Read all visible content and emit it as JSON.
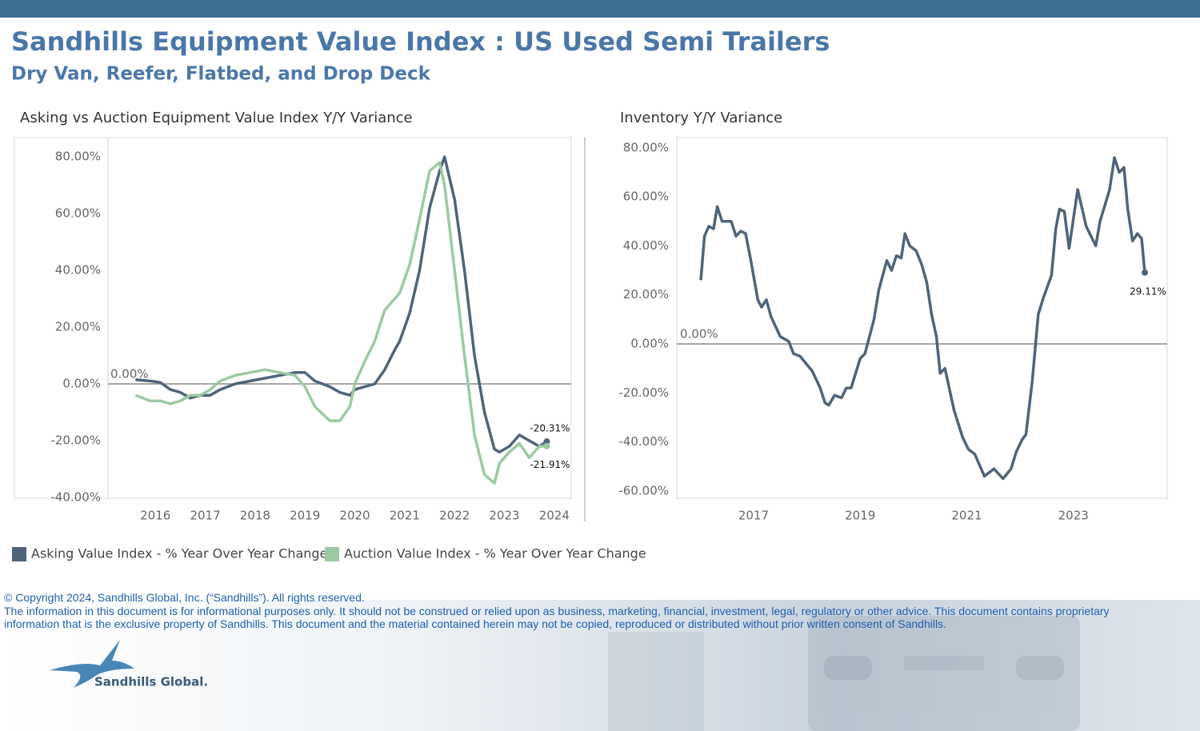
{
  "header": {
    "title": "Sandhills Equipment Value Index : US Used Semi Trailers",
    "subtitle": "Dry Van, Reefer, Flatbed, and Drop Deck"
  },
  "chart_data": [
    {
      "type": "line",
      "title": "Asking vs Auction Equipment Value Index Y/Y Variance",
      "x": [
        2015.6,
        2015.9,
        2016.1,
        2016.3,
        2016.5,
        2016.7,
        2016.9,
        2017.1,
        2017.3,
        2017.6,
        2017.9,
        2018.2,
        2018.5,
        2018.8,
        2019.0,
        2019.2,
        2019.5,
        2019.7,
        2019.9,
        2020.0,
        2020.2,
        2020.4,
        2020.6,
        2020.8,
        2020.9,
        2021.1,
        2021.3,
        2021.5,
        2021.7,
        2021.8,
        2022.0,
        2022.2,
        2022.4,
        2022.6,
        2022.8,
        2022.9,
        2023.1,
        2023.3,
        2023.5,
        2023.7,
        2023.85
      ],
      "series": [
        {
          "name": "Asking Value Index - % Year Over Year Change",
          "color": "#4f6479",
          "values": [
            1.5,
            1,
            0.5,
            -2,
            -3,
            -5,
            -4,
            -4,
            -2,
            0,
            1,
            2,
            3,
            4,
            4,
            1,
            -1,
            -3,
            -4,
            -2,
            -1,
            0,
            5,
            12,
            15,
            25,
            40,
            62,
            75,
            80,
            65,
            40,
            10,
            -10,
            -23,
            -24,
            -22,
            -18,
            -20,
            -22,
            -20.31
          ],
          "value_labels": [
            null,
            null,
            null,
            null,
            null,
            null,
            null,
            null,
            null,
            null,
            null,
            null,
            null,
            null,
            null,
            null,
            null,
            null,
            null,
            null,
            null,
            null,
            null,
            null,
            null,
            null,
            null,
            null,
            null,
            null,
            null,
            null,
            null,
            null,
            null,
            null,
            null,
            null,
            null,
            null,
            "-20.31%"
          ]
        },
        {
          "name": "Auction Value Index - % Year Over Year Change",
          "color": "#9cc9a3",
          "values": [
            -4,
            -6,
            -6,
            -7,
            -6,
            -4,
            -4,
            -2,
            1,
            3,
            4,
            5,
            4,
            3,
            -1,
            -8,
            -13,
            -13,
            -8,
            0,
            8,
            15,
            26,
            30,
            32,
            42,
            58,
            75,
            78,
            70,
            40,
            10,
            -18,
            -32,
            -35,
            -28,
            -24,
            -21,
            -26,
            -22,
            -21.91
          ],
          "value_labels": [
            null,
            null,
            null,
            null,
            null,
            null,
            null,
            null,
            null,
            null,
            null,
            null,
            null,
            null,
            null,
            null,
            null,
            null,
            null,
            null,
            null,
            null,
            null,
            null,
            null,
            null,
            null,
            null,
            null,
            null,
            null,
            null,
            null,
            null,
            null,
            null,
            null,
            null,
            null,
            null,
            "-21.91%"
          ]
        }
      ],
      "reference_line": {
        "value": 0,
        "label": "0.00%"
      },
      "xlim": [
        2015.05,
        2024.34
      ],
      "xticks": [
        2016,
        2017,
        2018,
        2019,
        2020,
        2021,
        2022,
        2023,
        2024
      ],
      "ylim": [
        -40.3,
        86.5
      ],
      "yticks": [
        {
          "value": -40,
          "label": "-40.00%"
        },
        {
          "value": -20,
          "label": "-20.00%"
        },
        {
          "value": 0,
          "label": "0.00%"
        },
        {
          "value": 20,
          "label": "20.00%"
        },
        {
          "value": 40,
          "label": "40.00%"
        },
        {
          "value": 60,
          "label": "60.00%"
        },
        {
          "value": 80,
          "label": "80.00%"
        }
      ],
      "legend": "bottom"
    },
    {
      "type": "line",
      "title": "Inventory Y/Y Variance",
      "x": [
        2016.01,
        2016.08,
        2016.16,
        2016.25,
        2016.32,
        2016.41,
        2016.58,
        2016.67,
        2016.76,
        2016.85,
        2016.94,
        2017.08,
        2017.15,
        2017.24,
        2017.33,
        2017.5,
        2017.66,
        2017.75,
        2017.87,
        2018.1,
        2018.25,
        2018.34,
        2018.41,
        2018.52,
        2018.65,
        2018.74,
        2018.83,
        2019.0,
        2019.09,
        2019.26,
        2019.35,
        2019.5,
        2019.59,
        2019.68,
        2019.77,
        2019.84,
        2019.93,
        2020.05,
        2020.16,
        2020.25,
        2020.34,
        2020.43,
        2020.5,
        2020.59,
        2020.76,
        2020.92,
        2021.03,
        2021.15,
        2021.33,
        2021.51,
        2021.68,
        2021.83,
        2021.93,
        2022.04,
        2022.11,
        2022.23,
        2022.34,
        2022.44,
        2022.59,
        2022.67,
        2022.74,
        2022.83,
        2022.92,
        2023.08,
        2023.24,
        2023.42,
        2023.5,
        2023.68,
        2023.77,
        2023.86,
        2023.95,
        2024.02,
        2024.11,
        2024.2,
        2024.28,
        2024.34
      ],
      "series": [
        {
          "color": "#4f6479",
          "values": [
            26,
            44,
            48,
            47,
            56,
            50,
            50,
            44,
            46,
            45,
            35,
            18,
            15,
            18,
            11,
            3,
            1,
            -4,
            -5,
            -11,
            -18,
            -24,
            -25,
            -21,
            -22,
            -18,
            -18,
            -6,
            -4,
            10,
            22,
            34,
            30,
            36,
            35,
            45,
            40,
            38,
            32,
            25,
            12,
            3,
            -12,
            -10,
            -27,
            -38,
            -43,
            -45,
            -54,
            -51,
            -55,
            -51,
            -44,
            -39,
            -37,
            -15,
            12,
            19,
            28,
            47,
            55,
            54,
            39,
            63,
            48,
            40,
            50,
            63,
            76,
            70,
            72,
            55,
            42,
            45,
            43,
            29.11
          ],
          "value_labels": [
            null,
            null,
            null,
            null,
            null,
            null,
            null,
            null,
            null,
            null,
            null,
            null,
            null,
            null,
            null,
            null,
            null,
            null,
            null,
            null,
            null,
            null,
            null,
            null,
            null,
            null,
            null,
            null,
            null,
            null,
            null,
            null,
            null,
            null,
            null,
            null,
            null,
            null,
            null,
            null,
            null,
            null,
            null,
            null,
            null,
            null,
            null,
            null,
            null,
            null,
            null,
            null,
            null,
            null,
            null,
            null,
            null,
            null,
            null,
            null,
            null,
            null,
            null,
            null,
            null,
            null,
            null,
            null,
            null,
            null,
            null,
            null,
            null,
            null,
            null,
            "29.11%"
          ]
        }
      ],
      "reference_line": {
        "value": 0,
        "label": "0.00%"
      },
      "xlim": [
        2015.56,
        2024.76
      ],
      "xticks": [
        2017,
        2019,
        2021,
        2023
      ],
      "ylim": [
        -63,
        84.2
      ],
      "yticks": [
        {
          "value": -60,
          "label": "-60.00%"
        },
        {
          "value": -40,
          "label": "-40.00%"
        },
        {
          "value": -20,
          "label": "-20.00%"
        },
        {
          "value": 0,
          "label": "0.00%"
        },
        {
          "value": 20,
          "label": "20.00%"
        },
        {
          "value": 40,
          "label": "40.00%"
        },
        {
          "value": 60,
          "label": "60.00%"
        },
        {
          "value": 80,
          "label": "80.00%"
        }
      ]
    }
  ],
  "footer": {
    "copyright": "© Copyright 2024, Sandhills Global, Inc. (“Sandhills”). All rights reserved.",
    "disclaimer": "The information in this document is for informational purposes only.  It should not be construed or relied upon as business, marketing, financial, investment, legal, regulatory or other advice. This document contains proprietary information that is the exclusive property of Sandhills. This document and the material contained herein may not be copied, reproduced or distributed without prior written consent of Sandhills.",
    "logo": "Sandhills Global."
  }
}
